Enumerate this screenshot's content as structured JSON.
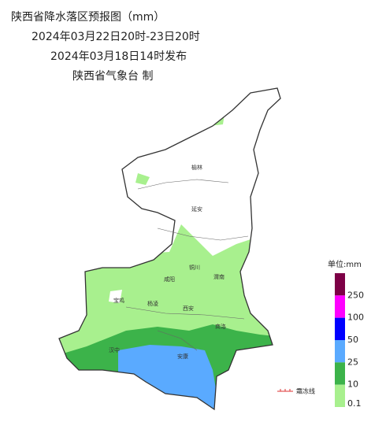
{
  "header": {
    "title": "陕西省降水落区预报图（mm）",
    "period": "2024年03月22日20时-23日20时",
    "issued": "2024年03月18日14时发布",
    "issuer": "陕西省气象台 制"
  },
  "cities": [
    "榆林",
    "延安",
    "铜川",
    "咸阳",
    "渭南",
    "宝鸡",
    "杨凌",
    "西安",
    "商洛",
    "汉中",
    "安康"
  ],
  "legend": {
    "unit": "单位:mm",
    "items": [
      {
        "label": "250",
        "color": "#7d0046"
      },
      {
        "label": "100",
        "color": "#ff00ff"
      },
      {
        "label": "50",
        "color": "#0000ff"
      },
      {
        "label": "25",
        "color": "#5aaaff"
      },
      {
        "label": "10",
        "color": "#3cb34a"
      },
      {
        "label": "0.1",
        "color": "#a8f08e"
      }
    ],
    "frost_line": "霜冻线"
  }
}
